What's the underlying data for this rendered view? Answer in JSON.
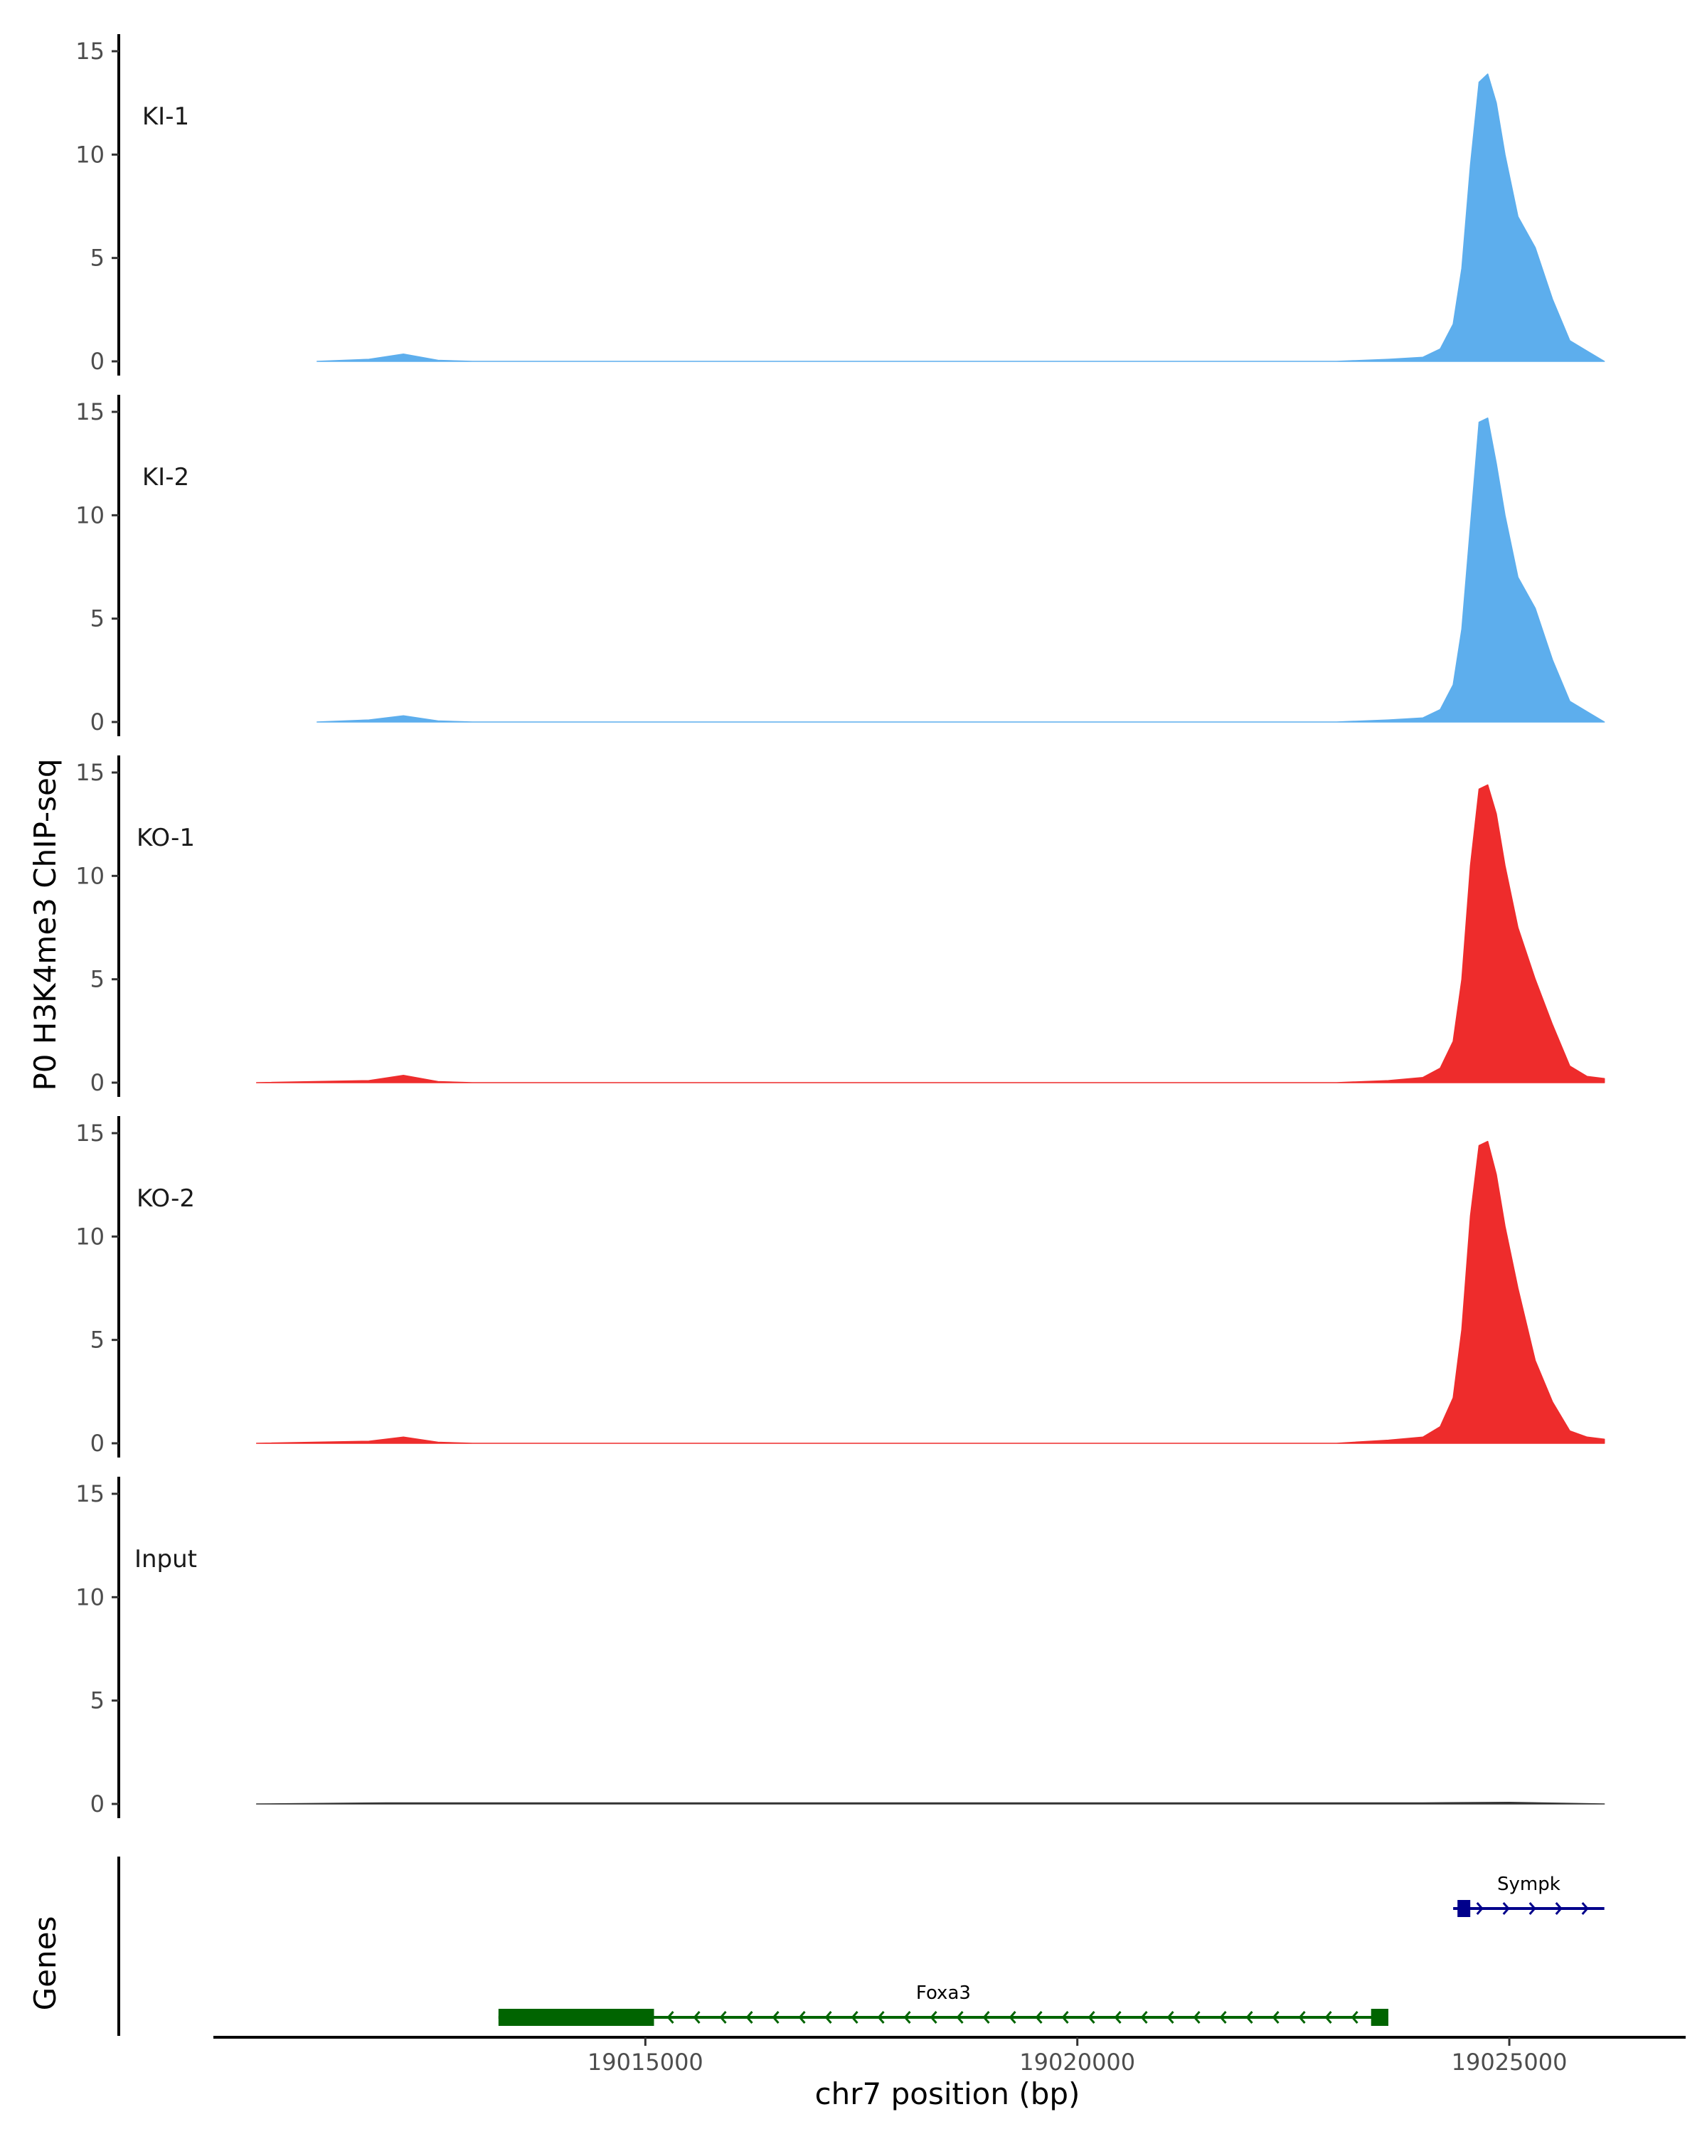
{
  "chart_data": {
    "type": "area",
    "title": "",
    "ylabel": "P0 H3K4me3 ChIP-seq",
    "xlabel": "chr7 position (bp)",
    "genes_label": "Genes",
    "xlim": [
      19010000,
      19027000
    ],
    "ylim": [
      0,
      15.5
    ],
    "y_ticks": [
      0,
      5,
      10,
      15
    ],
    "x_ticks": [
      19015000,
      19020000,
      19025000
    ],
    "x_tick_labels": [
      "19015000",
      "19020000",
      "19025000"
    ],
    "colors": {
      "KI": "#5daeed",
      "KO": "#ee2c2c",
      "Input": "#333333",
      "Foxa3": "#006400",
      "Sympk": "#00008b"
    },
    "tracks": [
      {
        "name": "KI-1",
        "color": "#5daeed",
        "x": [
          19011200,
          19011800,
          19012200,
          19012600,
          19013000,
          19014000,
          19015000,
          19016000,
          19017000,
          19018000,
          19019000,
          19020000,
          19021000,
          19022000,
          19023000,
          19023600,
          19024000,
          19024200,
          19024350,
          19024450,
          19024550,
          19024650,
          19024750,
          19024850,
          19024950,
          19025100,
          19025300,
          19025500,
          19025700,
          19025900,
          19026100
        ],
        "values": [
          0,
          0.1,
          0.35,
          0.05,
          0,
          0,
          0,
          0,
          0,
          0,
          0,
          0,
          0,
          0,
          0,
          0.1,
          0.2,
          0.6,
          1.8,
          4.5,
          9.5,
          13.5,
          13.9,
          12.5,
          10.0,
          7.0,
          5.5,
          3.0,
          1.0,
          0.5,
          0
        ]
      },
      {
        "name": "KI-2",
        "color": "#5daeed",
        "x": [
          19011200,
          19011800,
          19012200,
          19012600,
          19013000,
          19014000,
          19015000,
          19016000,
          19017000,
          19018000,
          19019000,
          19020000,
          19021000,
          19022000,
          19023000,
          19023600,
          19024000,
          19024200,
          19024350,
          19024450,
          19024550,
          19024650,
          19024750,
          19024850,
          19024950,
          19025100,
          19025300,
          19025500,
          19025700,
          19025900,
          19026100
        ],
        "values": [
          0,
          0.1,
          0.3,
          0.05,
          0,
          0,
          0,
          0,
          0,
          0,
          0,
          0,
          0,
          0,
          0,
          0.1,
          0.2,
          0.6,
          1.8,
          4.5,
          9.5,
          14.5,
          14.7,
          12.5,
          10.0,
          7.0,
          5.5,
          3.0,
          1.0,
          0.5,
          0
        ]
      },
      {
        "name": "KO-1",
        "color": "#ee2c2c",
        "x": [
          19010500,
          19011800,
          19012200,
          19012600,
          19013000,
          19014000,
          19015000,
          19016000,
          19017000,
          19018000,
          19019000,
          19020000,
          19021000,
          19022000,
          19023000,
          19023600,
          19024000,
          19024200,
          19024350,
          19024450,
          19024550,
          19024650,
          19024750,
          19024850,
          19024950,
          19025100,
          19025300,
          19025500,
          19025700,
          19025900,
          19026100
        ],
        "values": [
          0,
          0.1,
          0.35,
          0.05,
          0,
          0,
          0,
          0,
          0,
          0,
          0,
          0,
          0,
          0,
          0,
          0.1,
          0.25,
          0.7,
          2.0,
          5.0,
          10.5,
          14.2,
          14.4,
          13.0,
          10.5,
          7.5,
          5.0,
          2.8,
          0.8,
          0.3,
          0.2
        ]
      },
      {
        "name": "KO-2",
        "color": "#ee2c2c",
        "x": [
          19010500,
          19011800,
          19012200,
          19012600,
          19013000,
          19014000,
          19015000,
          19016000,
          19017000,
          19018000,
          19019000,
          19020000,
          19021000,
          19022000,
          19023000,
          19023600,
          19024000,
          19024200,
          19024350,
          19024450,
          19024550,
          19024650,
          19024750,
          19024850,
          19024950,
          19025100,
          19025300,
          19025500,
          19025700,
          19025900,
          19026100
        ],
        "values": [
          0,
          0.1,
          0.3,
          0.05,
          0,
          0,
          0,
          0,
          0,
          0,
          0,
          0,
          0,
          0,
          0,
          0.15,
          0.3,
          0.8,
          2.2,
          5.5,
          11.0,
          14.4,
          14.6,
          13.0,
          10.5,
          7.5,
          4.0,
          2.0,
          0.6,
          0.3,
          0.2
        ]
      },
      {
        "name": "Input",
        "color": "#333333",
        "x": [
          19010500,
          19012000,
          19014000,
          19016000,
          19018000,
          19020000,
          19022000,
          19024000,
          19025000,
          19026100
        ],
        "values": [
          0,
          0.05,
          0.05,
          0.05,
          0.05,
          0.05,
          0.05,
          0.05,
          0.08,
          0
        ]
      }
    ],
    "genes": [
      {
        "name": "Foxa3",
        "strand": "-",
        "start": 19013300,
        "end": 19023600,
        "exons": [
          [
            19013300,
            19015100
          ],
          [
            19023400,
            19023600
          ]
        ],
        "color": "#006400",
        "row": 2
      },
      {
        "name": "Sympk",
        "strand": "+",
        "start": 19024350,
        "end": 19026100,
        "exons": [
          [
            19024400,
            19024520
          ]
        ],
        "color": "#00008b",
        "row": 1
      }
    ]
  }
}
